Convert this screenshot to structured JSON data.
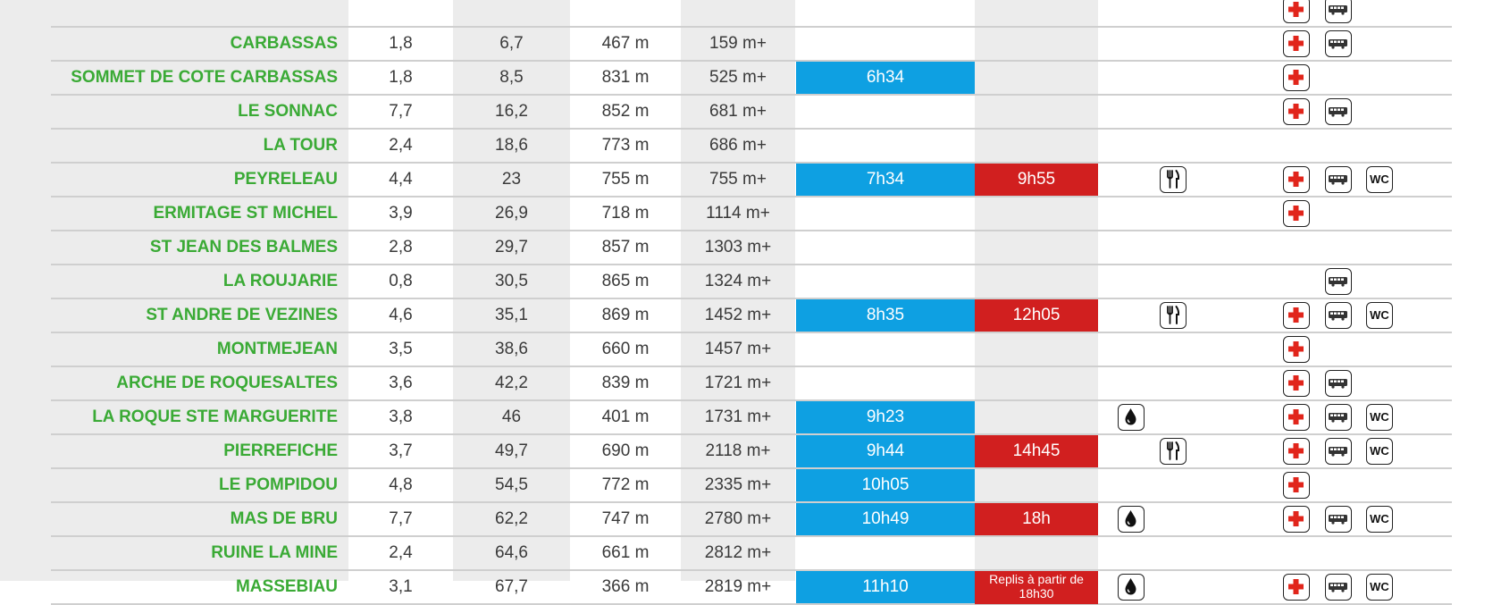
{
  "table": {
    "rows": [
      {
        "name": "",
        "dist": "",
        "cum": "",
        "alt": "",
        "den": "",
        "blue": "",
        "red": "",
        "water": false,
        "food": false,
        "cross": true,
        "bus": true,
        "wc": false
      },
      {
        "name": "CARBASSAS",
        "dist": "1,8",
        "cum": "6,7",
        "alt": "467 m",
        "den": "159 m+",
        "blue": "",
        "red": "",
        "water": false,
        "food": false,
        "cross": true,
        "bus": true,
        "wc": false
      },
      {
        "name": "SOMMET DE COTE CARBASSAS",
        "dist": "1,8",
        "cum": "8,5",
        "alt": "831 m",
        "den": "525 m+",
        "blue": "6h34",
        "red": "",
        "water": false,
        "food": false,
        "cross": true,
        "bus": false,
        "wc": false
      },
      {
        "name": "LE SONNAC",
        "dist": "7,7",
        "cum": "16,2",
        "alt": "852 m",
        "den": "681 m+",
        "blue": "",
        "red": "",
        "water": false,
        "food": false,
        "cross": true,
        "bus": true,
        "wc": false
      },
      {
        "name": "LA TOUR",
        "dist": "2,4",
        "cum": "18,6",
        "alt": "773 m",
        "den": "686 m+",
        "blue": "",
        "red": "",
        "water": false,
        "food": false,
        "cross": false,
        "bus": false,
        "wc": false
      },
      {
        "name": "PEYRELEAU",
        "dist": "4,4",
        "cum": "23",
        "alt": "755 m",
        "den": "755 m+",
        "blue": "7h34",
        "red": "9h55",
        "water": false,
        "food": true,
        "cross": true,
        "bus": true,
        "wc": true
      },
      {
        "name": "ERMITAGE ST MICHEL",
        "dist": "3,9",
        "cum": "26,9",
        "alt": "718 m",
        "den": "1114 m+",
        "blue": "",
        "red": "",
        "water": false,
        "food": false,
        "cross": true,
        "bus": false,
        "wc": false
      },
      {
        "name": "ST JEAN DES BALMES",
        "dist": "2,8",
        "cum": "29,7",
        "alt": "857 m",
        "den": "1303 m+",
        "blue": "",
        "red": "",
        "water": false,
        "food": false,
        "cross": false,
        "bus": false,
        "wc": false
      },
      {
        "name": "LA ROUJARIE",
        "dist": "0,8",
        "cum": "30,5",
        "alt": "865 m",
        "den": "1324 m+",
        "blue": "",
        "red": "",
        "water": false,
        "food": false,
        "cross": false,
        "bus": true,
        "wc": false
      },
      {
        "name": "ST ANDRE DE VEZINES",
        "dist": "4,6",
        "cum": "35,1",
        "alt": "869 m",
        "den": "1452 m+",
        "blue": "8h35",
        "red": "12h05",
        "water": false,
        "food": true,
        "cross": true,
        "bus": true,
        "wc": true
      },
      {
        "name": "MONTMEJEAN",
        "dist": "3,5",
        "cum": "38,6",
        "alt": "660 m",
        "den": "1457 m+",
        "blue": "",
        "red": "",
        "water": false,
        "food": false,
        "cross": true,
        "bus": false,
        "wc": false
      },
      {
        "name": "ARCHE DE ROQUESALTES",
        "dist": "3,6",
        "cum": "42,2",
        "alt": "839 m",
        "den": "1721 m+",
        "blue": "",
        "red": "",
        "water": false,
        "food": false,
        "cross": true,
        "bus": true,
        "wc": false
      },
      {
        "name": "LA ROQUE STE MARGUERITE",
        "dist": "3,8",
        "cum": "46",
        "alt": "401 m",
        "den": "1731 m+",
        "blue": "9h23",
        "red": "",
        "water": true,
        "food": false,
        "cross": true,
        "bus": true,
        "wc": true
      },
      {
        "name": "PIERREFICHE",
        "dist": "3,7",
        "cum": "49,7",
        "alt": "690 m",
        "den": "2118 m+",
        "blue": "9h44",
        "red": "14h45",
        "water": false,
        "food": true,
        "cross": true,
        "bus": true,
        "wc": true
      },
      {
        "name": "LE POMPIDOU",
        "dist": "4,8",
        "cum": "54,5",
        "alt": "772 m",
        "den": "2335 m+",
        "blue": "10h05",
        "red": "",
        "water": false,
        "food": false,
        "cross": true,
        "bus": false,
        "wc": false
      },
      {
        "name": "MAS DE BRU",
        "dist": "7,7",
        "cum": "62,2",
        "alt": "747 m",
        "den": "2780 m+",
        "blue": "10h49",
        "red": "18h",
        "water": true,
        "food": false,
        "cross": true,
        "bus": true,
        "wc": true
      },
      {
        "name": "RUINE LA MINE",
        "dist": "2,4",
        "cum": "64,6",
        "alt": "661 m",
        "den": "2812 m+",
        "blue": "",
        "red": "",
        "water": false,
        "food": false,
        "cross": false,
        "bus": false,
        "wc": false
      },
      {
        "name": "MASSEBIAU",
        "dist": "3,1",
        "cum": "67,7",
        "alt": "366 m",
        "den": "2819 m+",
        "blue": "11h10",
        "red": "Replis à partir de 18h30",
        "water": true,
        "food": false,
        "cross": true,
        "bus": true,
        "wc": true
      }
    ],
    "wc_label": "WC",
    "icons": {
      "water": "water-drop-icon",
      "food": "fork-knife-icon",
      "cross": "first-aid-cross-icon",
      "bus": "bus-icon",
      "wc": "wc-icon"
    },
    "colors": {
      "name": "#3aaa35",
      "blue": "#0ea0e2",
      "red": "#d11f1f",
      "gray": "#ececec"
    }
  }
}
